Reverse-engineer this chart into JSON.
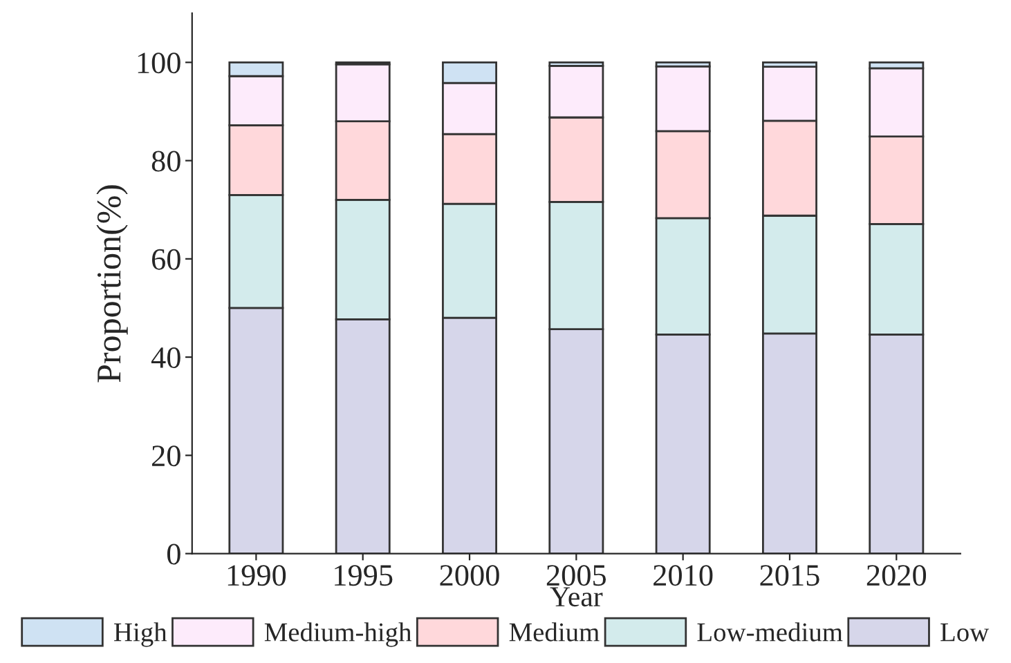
{
  "chart_data": {
    "type": "bar",
    "stacked": true,
    "xlabel": "Year",
    "ylabel": "Proportion(%)",
    "categories": [
      "1990",
      "1995",
      "2000",
      "2005",
      "2010",
      "2015",
      "2020"
    ],
    "series": [
      {
        "name": "Low",
        "color": "#d6d6ea",
        "values": [
          50,
          47.7,
          48,
          45.7,
          44.6,
          44.8,
          44.6
        ]
      },
      {
        "name": "Low-medium",
        "color": "#d3ebec",
        "values": [
          23,
          24.3,
          23.2,
          25.9,
          23.7,
          24,
          22.5
        ]
      },
      {
        "name": "Medium",
        "color": "#ffd8db",
        "values": [
          14.2,
          16,
          14.2,
          17.2,
          17.7,
          19.3,
          17.8
        ]
      },
      {
        "name": "Medium-high",
        "color": "#fdebfb",
        "values": [
          10,
          11.6,
          10.4,
          10.5,
          13.2,
          11,
          13.9
        ]
      },
      {
        "name": "High",
        "color": "#cfe2f3",
        "values": [
          2.8,
          0.4,
          4.2,
          0.7,
          0.8,
          0.9,
          1.2
        ]
      }
    ],
    "ylim": [
      0,
      110
    ],
    "yticks": [
      0,
      20,
      40,
      60,
      80,
      100
    ],
    "grid": false,
    "legend": "bottom"
  }
}
